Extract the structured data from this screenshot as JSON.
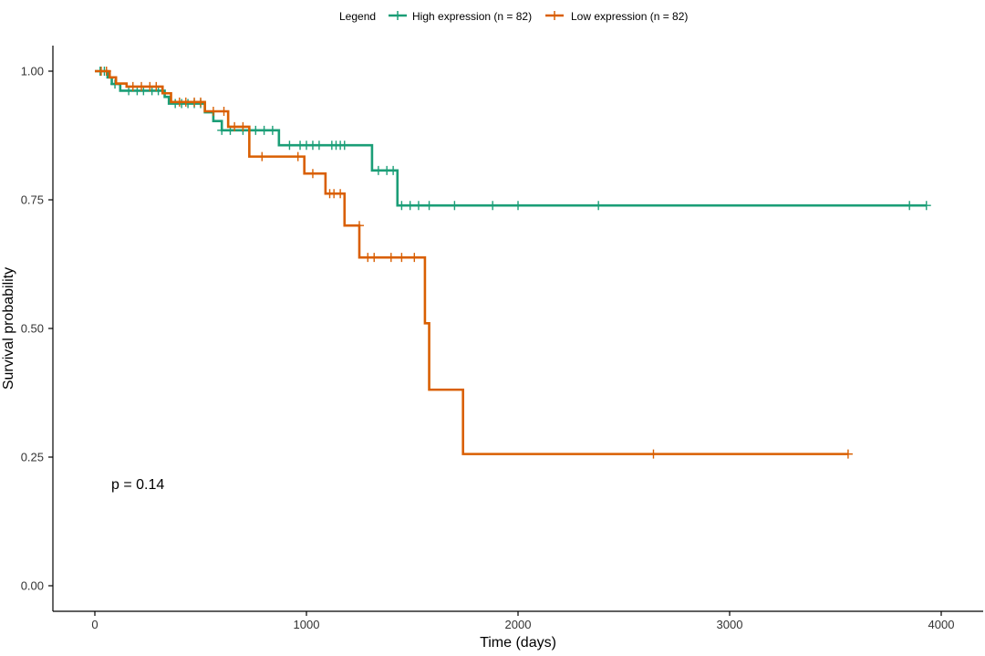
{
  "chart_data": {
    "type": "line",
    "subtype": "kaplan-meier-step",
    "title": "",
    "xlabel": "Time (days)",
    "ylabel": "Survival probability",
    "xlim": [
      -200,
      4200
    ],
    "ylim": [
      -0.06,
      1.05
    ],
    "xticks": [
      0,
      1000,
      2000,
      3000,
      4000
    ],
    "yticks": [
      0.0,
      0.25,
      0.5,
      0.75,
      1.0
    ],
    "ytick_labels": [
      "0.00",
      "0.25",
      "0.50",
      "0.75",
      "1.00"
    ],
    "grid": false,
    "legend": {
      "title": "Legend",
      "placement": "top",
      "entries": [
        "High expression (n = 82)",
        "Low expression (n = 82)"
      ]
    },
    "annotation": "p = 0.14",
    "series": [
      {
        "name": "High expression (n = 82)",
        "color": "#1b9e77",
        "steps": [
          [
            0,
            1.0
          ],
          [
            60,
            0.988
          ],
          [
            80,
            0.975
          ],
          [
            120,
            0.962
          ],
          [
            330,
            0.95
          ],
          [
            350,
            0.937
          ],
          [
            520,
            0.92
          ],
          [
            560,
            0.903
          ],
          [
            600,
            0.885
          ],
          [
            870,
            0.856
          ],
          [
            1310,
            0.807
          ],
          [
            1430,
            0.739
          ],
          [
            3930,
            0.739
          ]
        ],
        "censored": [
          [
            25,
            1.0
          ],
          [
            45,
            1.0
          ],
          [
            95,
            0.975
          ],
          [
            160,
            0.962
          ],
          [
            200,
            0.962
          ],
          [
            230,
            0.962
          ],
          [
            270,
            0.962
          ],
          [
            300,
            0.962
          ],
          [
            380,
            0.937
          ],
          [
            410,
            0.937
          ],
          [
            440,
            0.937
          ],
          [
            470,
            0.937
          ],
          [
            500,
            0.937
          ],
          [
            600,
            0.885
          ],
          [
            640,
            0.885
          ],
          [
            700,
            0.885
          ],
          [
            760,
            0.885
          ],
          [
            800,
            0.885
          ],
          [
            840,
            0.885
          ],
          [
            920,
            0.856
          ],
          [
            970,
            0.856
          ],
          [
            1000,
            0.856
          ],
          [
            1030,
            0.856
          ],
          [
            1060,
            0.856
          ],
          [
            1120,
            0.856
          ],
          [
            1140,
            0.856
          ],
          [
            1160,
            0.856
          ],
          [
            1180,
            0.856
          ],
          [
            1340,
            0.807
          ],
          [
            1380,
            0.807
          ],
          [
            1410,
            0.807
          ],
          [
            1450,
            0.739
          ],
          [
            1490,
            0.739
          ],
          [
            1530,
            0.739
          ],
          [
            1580,
            0.739
          ],
          [
            1700,
            0.739
          ],
          [
            1880,
            0.739
          ],
          [
            2000,
            0.739
          ],
          [
            2380,
            0.739
          ],
          [
            3850,
            0.739
          ],
          [
            3930,
            0.739
          ]
        ]
      },
      {
        "name": "Low expression (n = 82)",
        "color": "#d95f02",
        "steps": [
          [
            0,
            1.0
          ],
          [
            70,
            0.988
          ],
          [
            100,
            0.976
          ],
          [
            150,
            0.97
          ],
          [
            320,
            0.957
          ],
          [
            360,
            0.94
          ],
          [
            520,
            0.922
          ],
          [
            630,
            0.892
          ],
          [
            730,
            0.834
          ],
          [
            990,
            0.801
          ],
          [
            1090,
            0.762
          ],
          [
            1180,
            0.7
          ],
          [
            1250,
            0.638
          ],
          [
            1560,
            0.51
          ],
          [
            1580,
            0.381
          ],
          [
            1740,
            0.256
          ],
          [
            3560,
            0.256
          ]
        ],
        "censored": [
          [
            30,
            1.0
          ],
          [
            55,
            1.0
          ],
          [
            180,
            0.97
          ],
          [
            220,
            0.97
          ],
          [
            260,
            0.97
          ],
          [
            290,
            0.97
          ],
          [
            400,
            0.94
          ],
          [
            430,
            0.94
          ],
          [
            470,
            0.94
          ],
          [
            500,
            0.94
          ],
          [
            560,
            0.922
          ],
          [
            610,
            0.922
          ],
          [
            660,
            0.892
          ],
          [
            700,
            0.892
          ],
          [
            790,
            0.834
          ],
          [
            960,
            0.834
          ],
          [
            1030,
            0.801
          ],
          [
            1110,
            0.762
          ],
          [
            1130,
            0.762
          ],
          [
            1160,
            0.762
          ],
          [
            1250,
            0.7
          ],
          [
            1290,
            0.638
          ],
          [
            1320,
            0.638
          ],
          [
            1400,
            0.638
          ],
          [
            1450,
            0.638
          ],
          [
            1510,
            0.638
          ],
          [
            2640,
            0.256
          ],
          [
            3560,
            0.256
          ]
        ]
      }
    ]
  }
}
